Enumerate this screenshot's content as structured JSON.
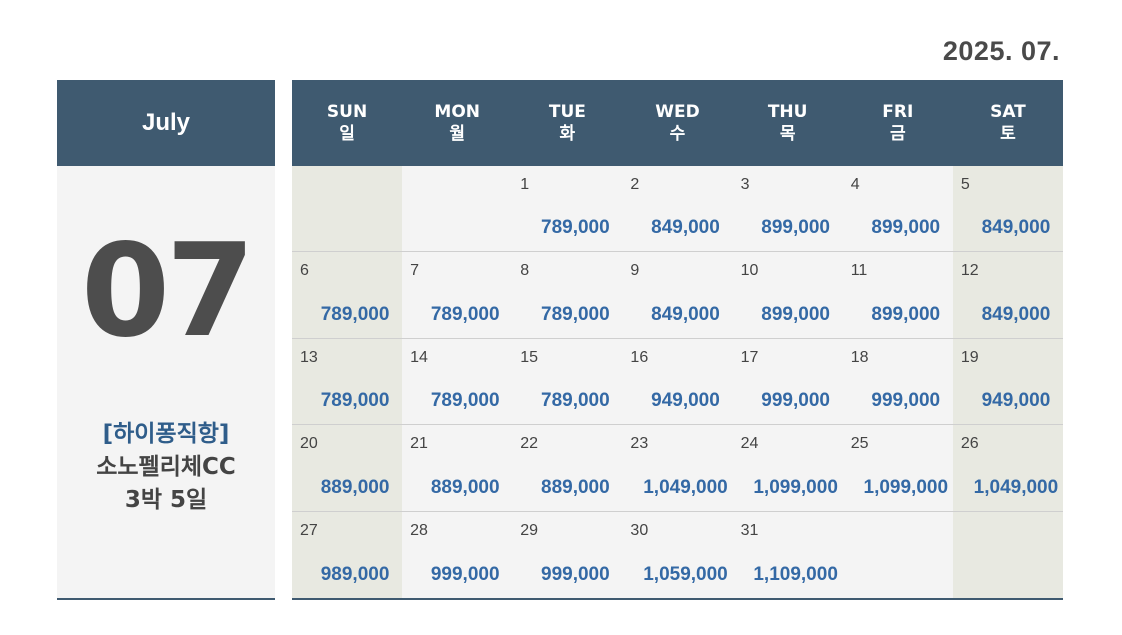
{
  "header": {
    "year_month": "2025. 07."
  },
  "left_panel": {
    "month_name": "July",
    "month_number": "07",
    "promo_line1": "[하이퐁직항]",
    "promo_line2": "소노펠리체CC",
    "promo_line3": "3박 5일"
  },
  "calendar": {
    "weekdays": [
      {
        "en": "SUN",
        "ko": "일"
      },
      {
        "en": "MON",
        "ko": "월"
      },
      {
        "en": "TUE",
        "ko": "화"
      },
      {
        "en": "WED",
        "ko": "수"
      },
      {
        "en": "THU",
        "ko": "목"
      },
      {
        "en": "FRI",
        "ko": "금"
      },
      {
        "en": "SAT",
        "ko": "토"
      }
    ],
    "weeks": [
      [
        {
          "day": "",
          "price": ""
        },
        {
          "day": "",
          "price": ""
        },
        {
          "day": "1",
          "price": "789,000"
        },
        {
          "day": "2",
          "price": "849,000"
        },
        {
          "day": "3",
          "price": "899,000"
        },
        {
          "day": "4",
          "price": "899,000"
        },
        {
          "day": "5",
          "price": "849,000"
        }
      ],
      [
        {
          "day": "6",
          "price": "789,000"
        },
        {
          "day": "7",
          "price": "789,000"
        },
        {
          "day": "8",
          "price": "789,000"
        },
        {
          "day": "9",
          "price": "849,000"
        },
        {
          "day": "10",
          "price": "899,000"
        },
        {
          "day": "11",
          "price": "899,000"
        },
        {
          "day": "12",
          "price": "849,000"
        }
      ],
      [
        {
          "day": "13",
          "price": "789,000"
        },
        {
          "day": "14",
          "price": "789,000"
        },
        {
          "day": "15",
          "price": "789,000"
        },
        {
          "day": "16",
          "price": "949,000"
        },
        {
          "day": "17",
          "price": "999,000"
        },
        {
          "day": "18",
          "price": "999,000"
        },
        {
          "day": "19",
          "price": "949,000"
        }
      ],
      [
        {
          "day": "20",
          "price": "889,000"
        },
        {
          "day": "21",
          "price": "889,000"
        },
        {
          "day": "22",
          "price": "889,000"
        },
        {
          "day": "23",
          "price": "1,049,000"
        },
        {
          "day": "24",
          "price": "1,099,000"
        },
        {
          "day": "25",
          "price": "1,099,000"
        },
        {
          "day": "26",
          "price": "1,049,000"
        }
      ],
      [
        {
          "day": "27",
          "price": "989,000"
        },
        {
          "day": "28",
          "price": "999,000"
        },
        {
          "day": "29",
          "price": "999,000"
        },
        {
          "day": "30",
          "price": "1,059,000"
        },
        {
          "day": "31",
          "price": "1,109,000"
        },
        {
          "day": "",
          "price": ""
        },
        {
          "day": "",
          "price": ""
        }
      ]
    ]
  },
  "colors": {
    "header_bg": "#3f5a70",
    "price": "#3469a5",
    "weekend_bg": "#e8e9e1",
    "weekday_bg": "#f4f4f4",
    "promo_accent": "#2f5d8a"
  }
}
